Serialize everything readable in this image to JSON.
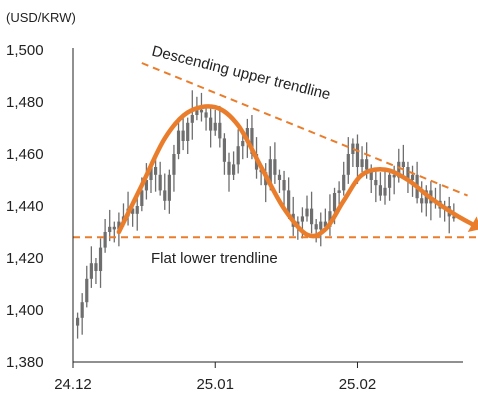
{
  "chart_data": {
    "type": "candlestick",
    "unit_label": "(USD/KRW)",
    "y_ticks": [
      "1,380",
      "1,400",
      "1,420",
      "1,440",
      "1,460",
      "1,480",
      "1,500"
    ],
    "ylim": [
      1380,
      1500
    ],
    "x_ticks": [
      {
        "label": "24.12",
        "x": 0
      },
      {
        "label": "25.01",
        "x": 31
      },
      {
        "label": "25.02",
        "x": 62
      }
    ],
    "xlim": [
      0,
      85
    ],
    "grid": false,
    "series": [
      {
        "x": [
          1,
          2,
          3,
          4,
          5,
          6,
          7,
          8,
          9,
          10,
          11,
          12,
          13,
          14,
          15,
          16,
          17,
          18,
          19,
          20,
          21,
          22,
          23,
          24,
          25,
          26,
          27,
          28,
          29,
          30,
          31,
          32,
          33,
          34,
          35,
          36,
          37,
          38,
          39,
          40,
          41,
          42,
          43,
          44,
          45,
          46,
          47,
          48,
          49,
          50,
          51,
          52,
          53,
          54,
          55,
          56,
          57,
          58,
          59,
          60,
          61,
          62,
          63,
          64,
          65,
          66,
          67,
          68,
          69,
          70,
          71,
          72,
          73,
          74,
          75,
          76,
          77,
          78,
          79,
          80,
          81,
          82,
          83
        ],
        "values": [
          1397,
          1403,
          1412,
          1418,
          1415,
          1424,
          1430,
          1432,
          1431,
          1434,
          1436,
          1439,
          1437,
          1440,
          1446,
          1450,
          1455,
          1452,
          1446,
          1442,
          1452,
          1460,
          1469,
          1465,
          1472,
          1475,
          1477,
          1476,
          1474,
          1469,
          1472,
          1466,
          1457,
          1452,
          1456,
          1463,
          1465,
          1470,
          1460,
          1454,
          1453,
          1448,
          1458,
          1452,
          1450,
          1446,
          1437,
          1432,
          1434,
          1436,
          1439,
          1433,
          1431,
          1434,
          1432,
          1438,
          1445,
          1446,
          1452,
          1460,
          1464,
          1455,
          1458,
          1454,
          1450,
          1448,
          1444,
          1447,
          1452,
          1451,
          1457,
          1455,
          1450,
          1452,
          1443,
          1441,
          1446,
          1441,
          1442,
          1439,
          1440,
          1436,
          1436
        ]
      }
    ],
    "trendlines": [
      {
        "name": "Descending upper trendline",
        "from": [
          15,
          1495
        ],
        "to": [
          86,
          1444
        ]
      },
      {
        "name": "Flat lower trendline",
        "from": [
          0,
          1428
        ],
        "to": [
          91,
          1428
        ]
      }
    ],
    "path": {
      "x": [
        10,
        15,
        20,
        25,
        31,
        36,
        41,
        46,
        51,
        55,
        59,
        63,
        68,
        73,
        78,
        83,
        87
      ],
      "values": [
        1430,
        1448,
        1466,
        1476,
        1478,
        1471,
        1455,
        1439,
        1429,
        1431,
        1442,
        1452,
        1454,
        1450,
        1443,
        1437,
        1433
      ]
    },
    "annotations": [
      {
        "text": "Descending upper trendline",
        "x": 17,
        "y": 1498,
        "angle": 14
      },
      {
        "text": "Flat lower trendline",
        "x": 17,
        "y": 1418,
        "angle": 0
      }
    ],
    "colors": {
      "candle": "#6e6e6e",
      "trend": "#ea7d2b",
      "axis": "#222222"
    }
  }
}
